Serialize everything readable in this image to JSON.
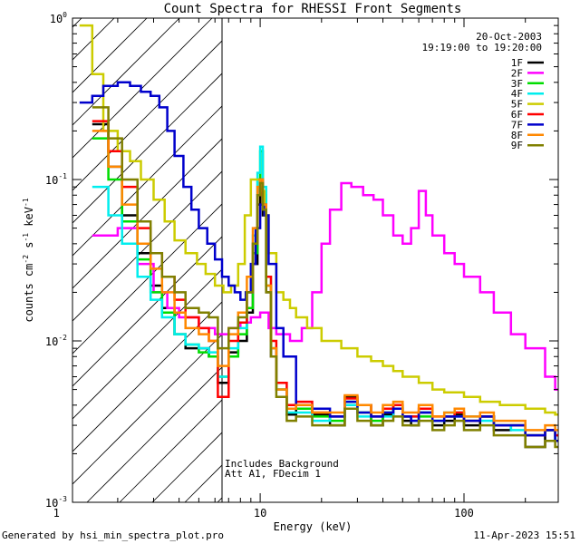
{
  "chart_data": {
    "type": "line",
    "title": "Count Spectra for RHESSI Front Segments",
    "xlabel": "Energy (keV)",
    "ylabel": "counts cm",
    "ylabel_exp1": "-2",
    "ylabel_mid": " s",
    "ylabel_exp2": "-1",
    "ylabel_unit": " keV",
    "ylabel_exp3": "-1",
    "xscale": "log",
    "yscale": "log",
    "xlim": [
      1.2,
      290
    ],
    "ylim": [
      0.001,
      1
    ],
    "x_ticks": [
      {
        "value": 1,
        "label": "1"
      },
      {
        "value": 10,
        "label": "10"
      },
      {
        "value": 100,
        "label": "100"
      }
    ],
    "y_ticks": [
      {
        "value": 1,
        "label": "10",
        "exp": "0"
      },
      {
        "value": 0.1,
        "label": "10",
        "exp": "-1"
      },
      {
        "value": 0.01,
        "label": "10",
        "exp": "-2"
      },
      {
        "value": 0.001,
        "label": "10",
        "exp": "-3"
      }
    ],
    "date": "20-Oct-2003",
    "time_range": "19:19:00 to 19:20:00",
    "annotation_1": "Includes Background",
    "annotation_2": "Att A1, FDecim 1",
    "attenuator_edge_keV": 6,
    "footer_left": "Generated by hsi_min_spectra_plot.pro",
    "footer_right": "11-Apr-2023 15:51",
    "series": [
      {
        "name": "1F",
        "color": "#000000",
        "x": [
          1.5,
          1.8,
          2.1,
          2.5,
          2.9,
          3.3,
          3.8,
          4.3,
          5.0,
          5.6,
          6.2,
          7.0,
          7.8,
          8.6,
          9.2,
          9.7,
          10.0,
          10.3,
          10.7,
          11.3,
          12.0,
          13.5,
          15,
          18,
          22,
          26,
          30,
          35,
          40,
          45,
          50,
          55,
          60,
          70,
          80,
          90,
          100,
          120,
          140,
          170,
          200,
          250,
          280
        ],
        "y": [
          0.22,
          0.12,
          0.06,
          0.035,
          0.022,
          0.016,
          0.011,
          0.009,
          0.009,
          0.008,
          0.0055,
          0.0085,
          0.01,
          0.015,
          0.03,
          0.07,
          0.09,
          0.06,
          0.02,
          0.008,
          0.005,
          0.0035,
          0.004,
          0.0035,
          0.003,
          0.0045,
          0.004,
          0.003,
          0.0035,
          0.004,
          0.0032,
          0.003,
          0.0036,
          0.003,
          0.0032,
          0.0035,
          0.003,
          0.0034,
          0.0028,
          0.003,
          0.0022,
          0.0028,
          0.0024
        ]
      },
      {
        "name": "2F",
        "color": "#ff00ff",
        "x": [
          1.5,
          2.0,
          2.5,
          3.0,
          3.5,
          4.0,
          5.0,
          6.0,
          7.0,
          8.0,
          9.0,
          10.0,
          11.0,
          12.0,
          14.0,
          16.0,
          18.0,
          20.0,
          22.0,
          25.0,
          28.0,
          32.0,
          36.0,
          40.0,
          45.0,
          50.0,
          55.0,
          60.0,
          65.0,
          70.0,
          80.0,
          90.0,
          100.0,
          120.0,
          140.0,
          170.0,
          200.0,
          250.0,
          280.0
        ],
        "y": [
          0.045,
          0.05,
          0.03,
          0.02,
          0.016,
          0.014,
          0.012,
          0.011,
          0.012,
          0.013,
          0.014,
          0.015,
          0.012,
          0.011,
          0.01,
          0.012,
          0.02,
          0.04,
          0.065,
          0.095,
          0.09,
          0.08,
          0.075,
          0.06,
          0.045,
          0.04,
          0.05,
          0.085,
          0.06,
          0.045,
          0.035,
          0.03,
          0.025,
          0.02,
          0.015,
          0.011,
          0.009,
          0.006,
          0.005
        ]
      },
      {
        "name": "3F",
        "color": "#00dd00",
        "x": [
          1.5,
          1.8,
          2.1,
          2.5,
          2.9,
          3.3,
          3.8,
          4.3,
          5.0,
          5.6,
          6.2,
          7.0,
          7.8,
          8.6,
          9.2,
          9.7,
          10.0,
          10.3,
          10.7,
          11.3,
          12.0,
          13.5,
          15,
          18,
          22,
          26,
          30,
          35,
          40,
          45,
          50,
          55,
          60,
          70,
          80,
          90,
          100,
          120,
          140,
          170,
          200,
          250,
          280
        ],
        "y": [
          0.18,
          0.1,
          0.055,
          0.032,
          0.02,
          0.015,
          0.011,
          0.0095,
          0.0085,
          0.008,
          0.006,
          0.008,
          0.011,
          0.016,
          0.035,
          0.1,
          0.15,
          0.08,
          0.022,
          0.009,
          0.005,
          0.0038,
          0.0038,
          0.0034,
          0.0032,
          0.0042,
          0.0036,
          0.0032,
          0.0036,
          0.0038,
          0.0034,
          0.0032,
          0.0034,
          0.0032,
          0.0034,
          0.0036,
          0.0032,
          0.0034,
          0.003,
          0.003,
          0.0026,
          0.0028,
          0.0026
        ]
      },
      {
        "name": "4F",
        "color": "#00eeee",
        "x": [
          1.5,
          1.8,
          2.1,
          2.5,
          2.9,
          3.3,
          3.8,
          4.3,
          5.0,
          5.6,
          6.2,
          7.0,
          7.8,
          8.6,
          9.2,
          9.7,
          10.0,
          10.3,
          10.7,
          11.3,
          12.0,
          13.5,
          15,
          18,
          22,
          26,
          30,
          35,
          40,
          45,
          50,
          55,
          60,
          70,
          80,
          90,
          100,
          120,
          140,
          170,
          200,
          250,
          280
        ],
        "y": [
          0.09,
          0.06,
          0.04,
          0.025,
          0.018,
          0.014,
          0.011,
          0.0095,
          0.009,
          0.0085,
          0.006,
          0.009,
          0.012,
          0.02,
          0.045,
          0.11,
          0.16,
          0.09,
          0.025,
          0.009,
          0.005,
          0.0036,
          0.0036,
          0.0032,
          0.0034,
          0.004,
          0.0034,
          0.0034,
          0.0034,
          0.004,
          0.0034,
          0.0034,
          0.0036,
          0.0032,
          0.0036,
          0.0034,
          0.0034,
          0.0032,
          0.003,
          0.0028,
          0.0026,
          0.0028,
          0.0024
        ]
      },
      {
        "name": "5F",
        "color": "#cccc00",
        "x": [
          1.3,
          1.5,
          1.7,
          2.0,
          2.3,
          2.6,
          3.0,
          3.4,
          3.8,
          4.3,
          4.9,
          5.4,
          6.0,
          6.6,
          7.2,
          7.8,
          8.4,
          9.0,
          9.5,
          10.0,
          10.5,
          11.0,
          12.0,
          13.0,
          14.0,
          15.0,
          17.0,
          20.0,
          25.0,
          30.0,
          35.0,
          40.0,
          45.0,
          50.0,
          60.0,
          70.0,
          80.0,
          100.0,
          120.0,
          150.0,
          200.0,
          250.0,
          280.0
        ],
        "y": [
          0.9,
          0.45,
          0.2,
          0.15,
          0.13,
          0.1,
          0.075,
          0.055,
          0.042,
          0.035,
          0.03,
          0.026,
          0.022,
          0.02,
          0.022,
          0.03,
          0.06,
          0.1,
          0.1,
          0.085,
          0.06,
          0.035,
          0.02,
          0.018,
          0.016,
          0.014,
          0.012,
          0.01,
          0.009,
          0.008,
          0.0075,
          0.007,
          0.0065,
          0.006,
          0.0055,
          0.005,
          0.0048,
          0.0045,
          0.0042,
          0.004,
          0.0038,
          0.0036,
          0.0035
        ]
      },
      {
        "name": "6F",
        "color": "#ff0000",
        "x": [
          1.5,
          1.8,
          2.1,
          2.5,
          2.9,
          3.3,
          3.8,
          4.3,
          5.0,
          5.6,
          6.2,
          7.0,
          7.8,
          8.6,
          9.2,
          9.7,
          10.0,
          10.3,
          10.7,
          11.3,
          12.0,
          13.5,
          15,
          18,
          22,
          26,
          30,
          35,
          40,
          45,
          50,
          55,
          60,
          70,
          80,
          90,
          100,
          120,
          140,
          170,
          200,
          250,
          280
        ],
        "y": [
          0.23,
          0.15,
          0.09,
          0.05,
          0.035,
          0.025,
          0.018,
          0.014,
          0.012,
          0.01,
          0.0045,
          0.01,
          0.013,
          0.02,
          0.04,
          0.08,
          0.1,
          0.07,
          0.025,
          0.01,
          0.0055,
          0.004,
          0.0042,
          0.0036,
          0.0034,
          0.0044,
          0.004,
          0.0034,
          0.0038,
          0.004,
          0.0034,
          0.0034,
          0.0038,
          0.0034,
          0.0034,
          0.0036,
          0.0032,
          0.0034,
          0.003,
          0.003,
          0.0026,
          0.0028,
          0.0026
        ]
      },
      {
        "name": "7F",
        "color": "#0000cc",
        "x": [
          1.3,
          1.5,
          1.7,
          2.0,
          2.3,
          2.6,
          2.9,
          3.2,
          3.5,
          3.8,
          4.2,
          4.6,
          5.0,
          5.5,
          6.0,
          6.5,
          7.0,
          7.5,
          8.0,
          8.5,
          9.0,
          9.5,
          10.0,
          10.5,
          11.0,
          12.0,
          13.0,
          15,
          18,
          22,
          26,
          30,
          35,
          40,
          45,
          50,
          55,
          60,
          70,
          80,
          90,
          100,
          120,
          140,
          170,
          200,
          250,
          280
        ],
        "y": [
          0.3,
          0.33,
          0.38,
          0.4,
          0.38,
          0.35,
          0.33,
          0.28,
          0.2,
          0.14,
          0.09,
          0.065,
          0.05,
          0.04,
          0.032,
          0.025,
          0.022,
          0.02,
          0.018,
          0.02,
          0.03,
          0.05,
          0.07,
          0.06,
          0.03,
          0.012,
          0.008,
          0.004,
          0.0038,
          0.0034,
          0.0042,
          0.0036,
          0.0034,
          0.0036,
          0.0038,
          0.0034,
          0.0032,
          0.0036,
          0.0032,
          0.0034,
          0.0034,
          0.0032,
          0.0034,
          0.003,
          0.003,
          0.0026,
          0.0028,
          0.0024
        ]
      },
      {
        "name": "8F",
        "color": "#ff8800",
        "x": [
          1.5,
          1.8,
          2.1,
          2.5,
          2.9,
          3.3,
          3.8,
          4.3,
          5.0,
          5.6,
          6.2,
          7.0,
          7.8,
          8.6,
          9.2,
          9.7,
          10.0,
          10.3,
          10.7,
          11.3,
          12.0,
          13.5,
          15,
          18,
          22,
          26,
          30,
          35,
          40,
          45,
          50,
          55,
          60,
          70,
          80,
          90,
          100,
          120,
          140,
          170,
          200,
          250,
          280
        ],
        "y": [
          0.2,
          0.12,
          0.07,
          0.04,
          0.028,
          0.02,
          0.015,
          0.012,
          0.011,
          0.01,
          0.007,
          0.011,
          0.015,
          0.025,
          0.05,
          0.09,
          0.1,
          0.07,
          0.022,
          0.009,
          0.005,
          0.0038,
          0.004,
          0.0036,
          0.0036,
          0.0046,
          0.004,
          0.0036,
          0.004,
          0.0042,
          0.0036,
          0.0036,
          0.004,
          0.0034,
          0.0036,
          0.0038,
          0.0034,
          0.0036,
          0.0032,
          0.0032,
          0.0028,
          0.003,
          0.0028
        ]
      },
      {
        "name": "9F",
        "color": "#808000",
        "x": [
          1.5,
          1.8,
          2.1,
          2.5,
          2.9,
          3.3,
          3.8,
          4.3,
          5.0,
          5.6,
          6.2,
          7.0,
          7.8,
          8.6,
          9.2,
          9.7,
          10.0,
          10.3,
          10.7,
          11.3,
          12.0,
          13.5,
          15,
          18,
          22,
          26,
          30,
          35,
          40,
          45,
          50,
          55,
          60,
          70,
          80,
          90,
          100,
          120,
          140,
          170,
          200,
          250,
          280
        ],
        "y": [
          0.28,
          0.18,
          0.1,
          0.055,
          0.035,
          0.025,
          0.02,
          0.016,
          0.015,
          0.014,
          0.009,
          0.012,
          0.014,
          0.02,
          0.04,
          0.08,
          0.095,
          0.065,
          0.02,
          0.008,
          0.0045,
          0.0032,
          0.0034,
          0.003,
          0.003,
          0.0038,
          0.0032,
          0.003,
          0.0032,
          0.0034,
          0.003,
          0.003,
          0.0032,
          0.0028,
          0.003,
          0.0032,
          0.0028,
          0.003,
          0.0026,
          0.0026,
          0.0022,
          0.0024,
          0.0022
        ]
      }
    ]
  }
}
